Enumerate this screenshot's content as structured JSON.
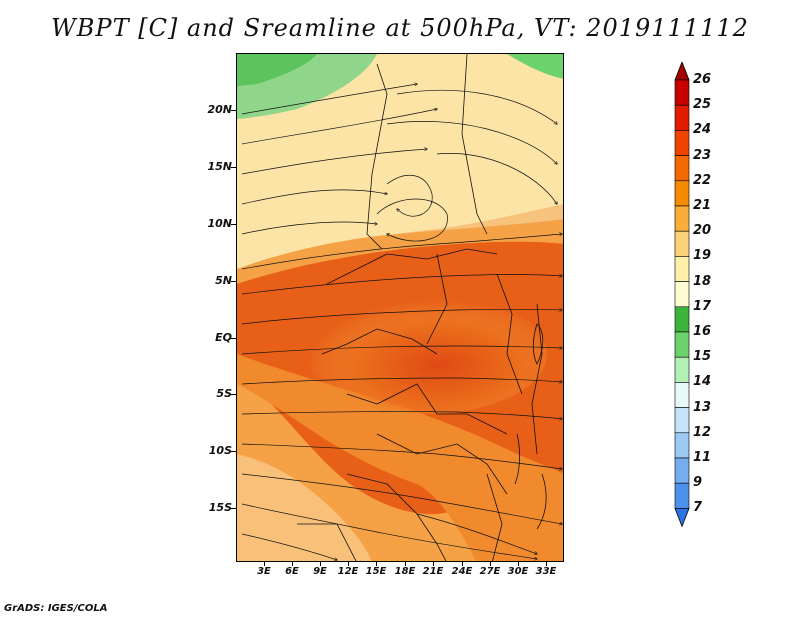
{
  "title": "WBPT [C] and Sreamline at 500hPa, VT: 2019111112",
  "credit": "GrADS: IGES/COLA",
  "map": {
    "variable": "Wet-bulb potential temperature (C) with 500hPa streamlines",
    "lat_labels": [
      "20N",
      "15N",
      "10N",
      "5N",
      "EQ",
      "5S",
      "10S",
      "15S"
    ],
    "lon_labels": [
      "3E",
      "6E",
      "9E",
      "12E",
      "15E",
      "18E",
      "21E",
      "24E",
      "27E",
      "30E",
      "33E"
    ]
  },
  "colorbar": {
    "labels": [
      "26",
      "25",
      "24",
      "23",
      "22",
      "21",
      "20",
      "19",
      "18",
      "17",
      "16",
      "15",
      "14",
      "13",
      "12",
      "11",
      "9",
      "7"
    ],
    "colors": [
      "#a50000",
      "#c80000",
      "#e21a00",
      "#ee4400",
      "#f26a00",
      "#f68a00",
      "#f9ae3a",
      "#fbd27a",
      "#fff0a8",
      "#fffbd0",
      "#3cb43c",
      "#6cd26c",
      "#b4f0b4",
      "#e6f8f8",
      "#c4e2f8",
      "#9ccaf4",
      "#74aef0",
      "#4c92ec",
      "#2a74e4"
    ]
  }
}
